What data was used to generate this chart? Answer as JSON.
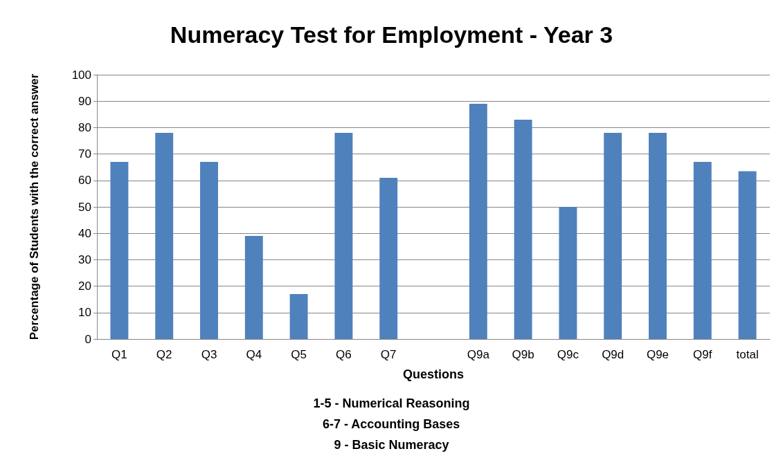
{
  "chart_data": {
    "type": "bar",
    "title": "Numeracy Test for Employment - Year 3",
    "xlabel": "Questions",
    "ylabel": "Percentage of Students with the correct answer",
    "annotations": [
      "1-5 - Numerical Reasoning",
      "6-7 - Accounting Bases",
      "9 - Basic Numeracy"
    ],
    "categories": [
      "Q1",
      "Q2",
      "Q3",
      "Q4",
      "Q5",
      "Q6",
      "Q7",
      null,
      "Q9a",
      "Q9b",
      "Q9c",
      "Q9d",
      "Q9e",
      "Q9f",
      "total"
    ],
    "values": [
      67,
      78,
      67,
      39,
      17,
      78,
      61,
      null,
      89,
      83,
      50,
      78,
      78,
      67,
      63.5
    ],
    "color": "#4f81bd",
    "ylim": [
      0,
      100
    ],
    "yticks": [
      0,
      10,
      20,
      30,
      40,
      50,
      60,
      70,
      80,
      90,
      100
    ],
    "grid": "y"
  }
}
